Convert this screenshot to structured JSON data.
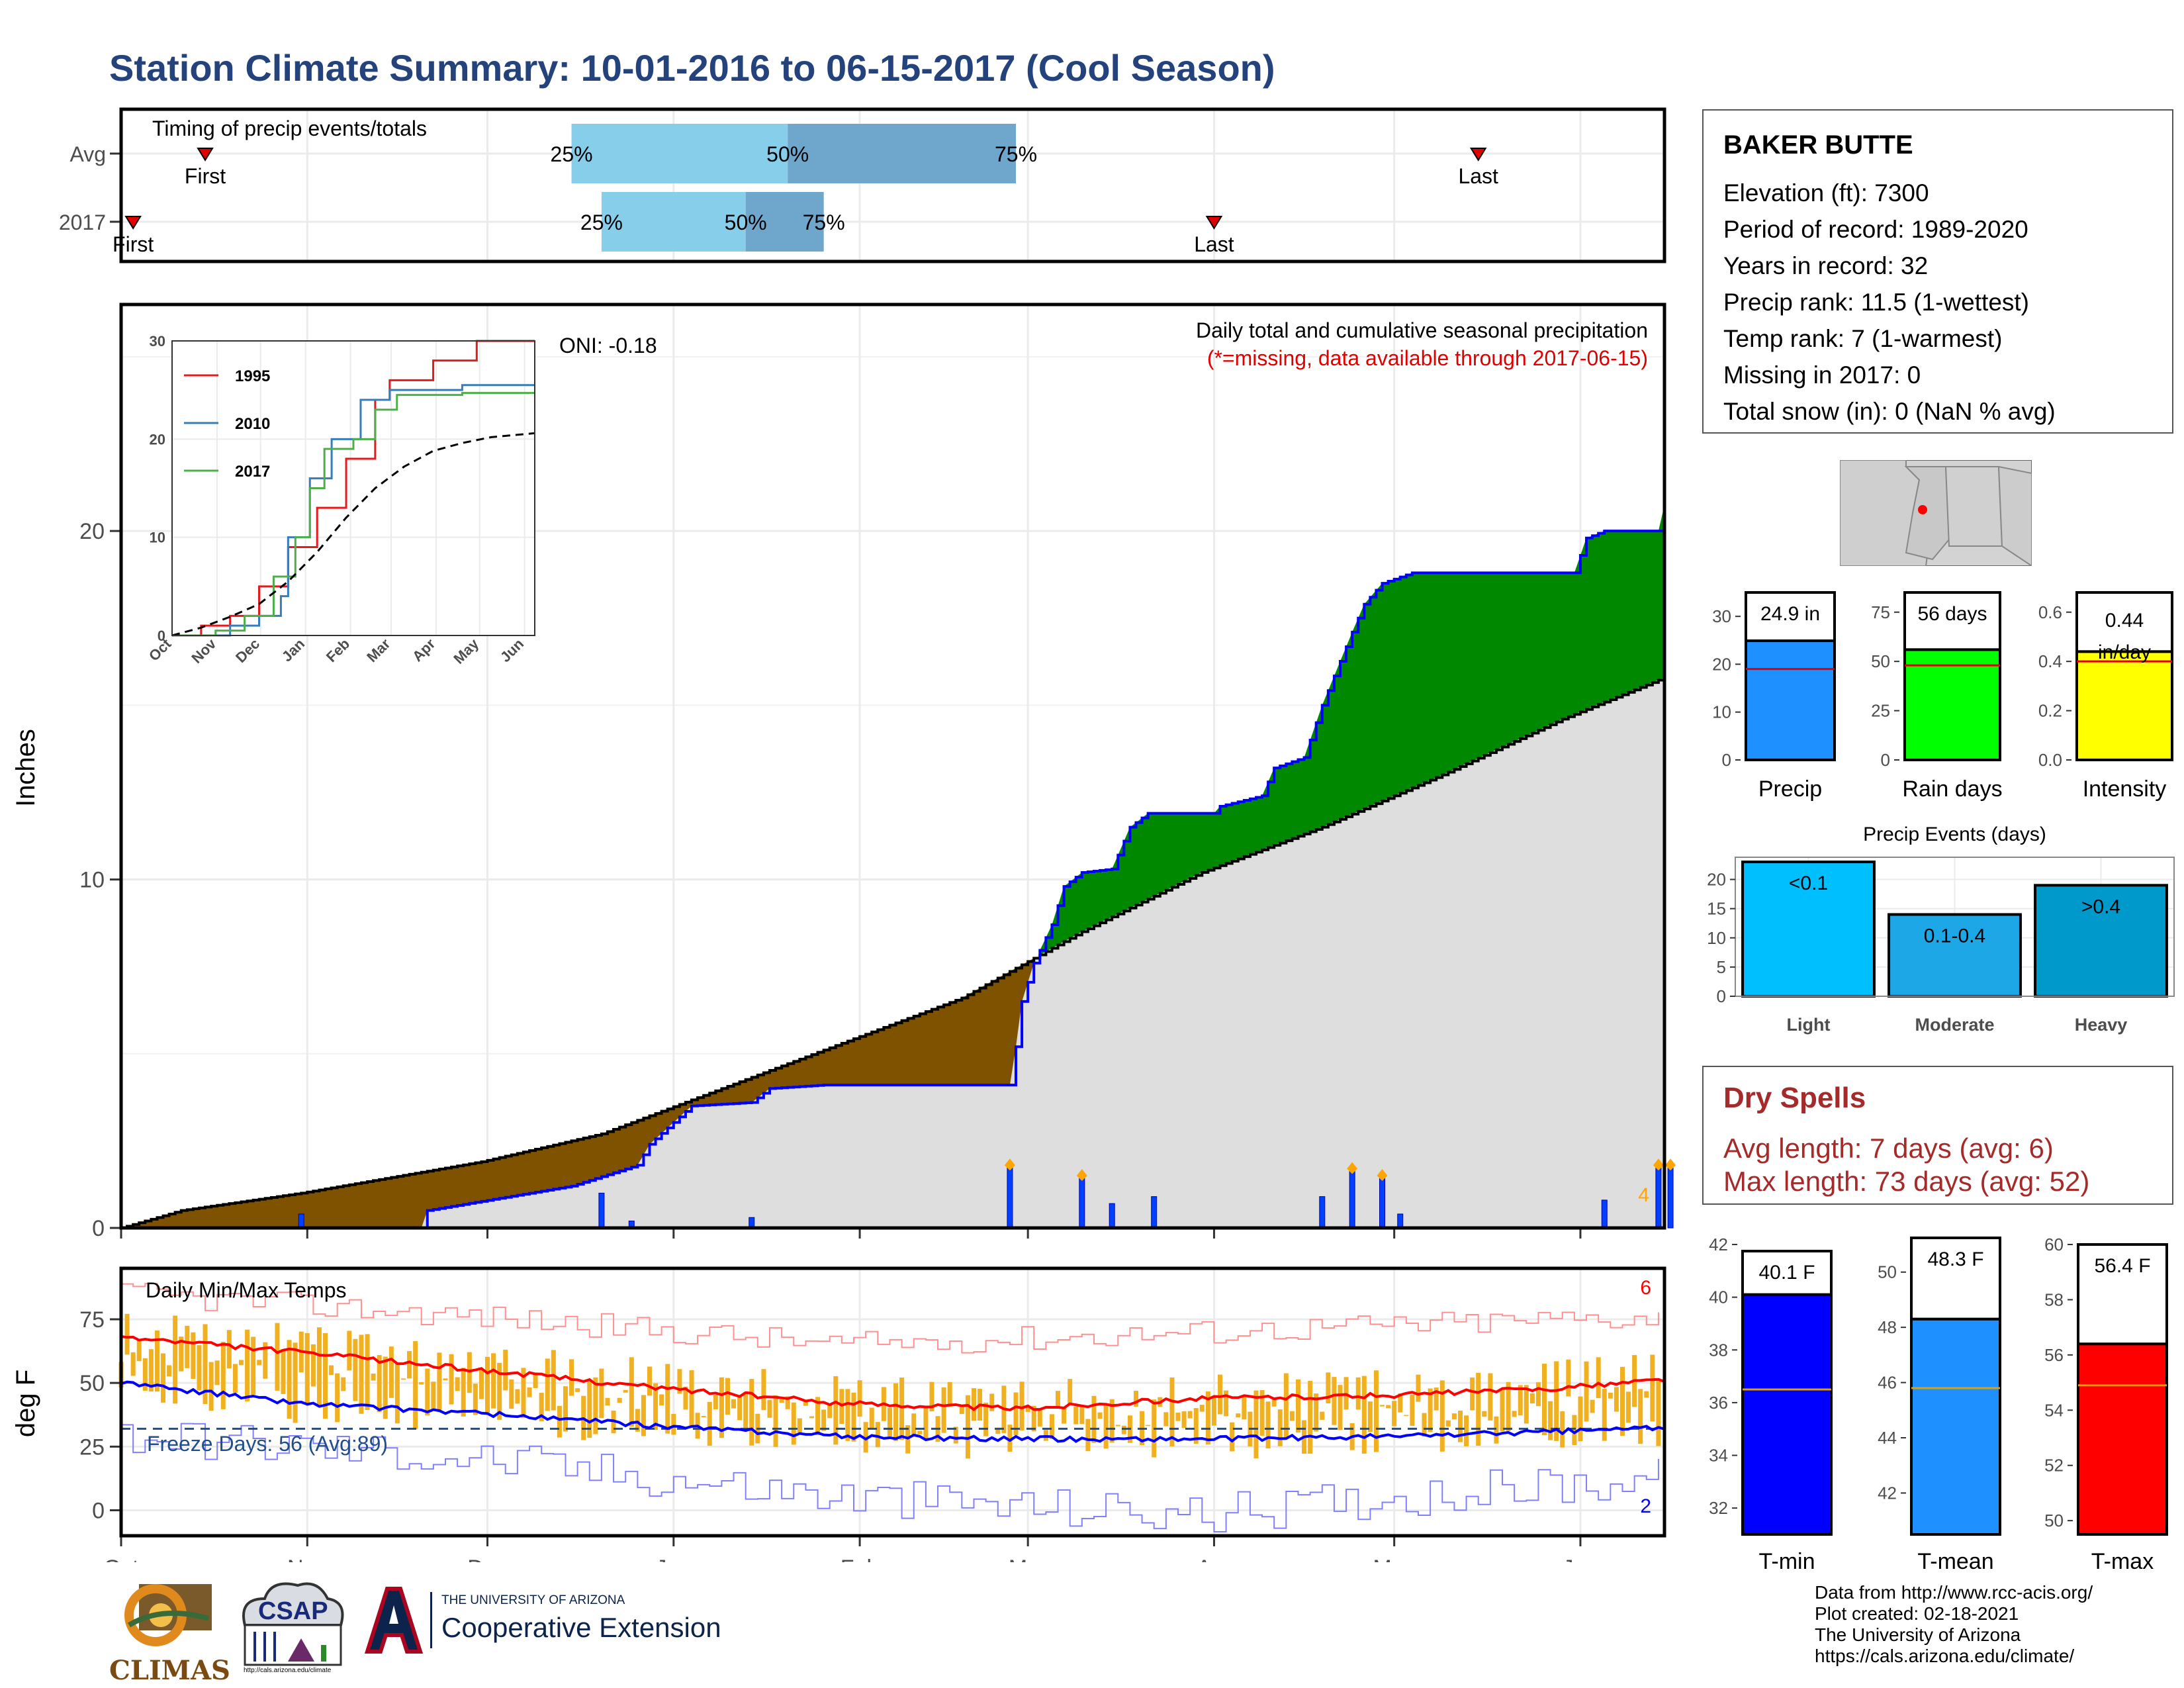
{
  "title": "Station Climate Summary: 10-01-2016 to 06-15-2017 (Cool Season)",
  "timing": {
    "label": "Timing of precip events/totals",
    "rows": [
      "Avg",
      "2017"
    ],
    "first_label": "First",
    "last_label": "Last",
    "pct_labels": [
      "25%",
      "50%",
      "75%"
    ]
  },
  "precip_panel": {
    "title": "Daily total and cumulative seasonal precipitation",
    "subtitle": "(*=missing, data available through 2017-06-15)",
    "ylabel": "Inches",
    "oni": "ONI: -0.18",
    "corner_count": "4"
  },
  "inset": {
    "legend": [
      "1995",
      "2010",
      "2017"
    ],
    "colors": [
      "#e41a1c",
      "#377eb8",
      "#4daf4a"
    ],
    "yticks": [
      "0",
      "10",
      "20",
      "30"
    ],
    "xticks": [
      "Oct",
      "Nov",
      "Dec",
      "Jan",
      "Feb",
      "Mar",
      "Apr",
      "May",
      "Jun"
    ]
  },
  "temp_panel": {
    "title": "Daily Min/Max Temps",
    "ylabel": "deg F",
    "freeze": "Freeze Days: 56 (Avg:89)",
    "count_top": "6",
    "count_bottom": "2"
  },
  "months": [
    "Oct",
    "Nov",
    "Dec",
    "Jan",
    "Feb",
    "Mar",
    "Apr",
    "May",
    "Jun"
  ],
  "station": {
    "name": "BAKER BUTTE",
    "lines": [
      "Elevation (ft): 7300",
      "Period of record: 1989-2020",
      "Years in record: 32",
      "Precip rank: 11.5 (1-wettest)",
      "Temp rank: 7 (1-warmest)",
      "Missing in 2017: 0",
      "Total snow (in): 0 (NaN % avg)"
    ]
  },
  "summary_bars": [
    {
      "label": "Precip",
      "value_text": "24.9 in",
      "value": 24.9,
      "avg": 19,
      "ymax": 35,
      "ticks": [
        "0",
        "10",
        "20",
        "30"
      ],
      "color": "#1e90ff"
    },
    {
      "label": "Rain days",
      "value_text": "56 days",
      "value": 56,
      "avg": 48,
      "ymax": 85,
      "ticks": [
        "0",
        "25",
        "50",
        "75"
      ],
      "color": "#00ff00"
    },
    {
      "label": "Intensity",
      "value_text": "0.44 in/day",
      "value": 0.44,
      "avg": 0.4,
      "ymax": 0.68,
      "ticks": [
        "0.0",
        "0.2",
        "0.4",
        "0.6"
      ],
      "color": "#ffff00"
    }
  ],
  "events": {
    "title": "Precip Events (days)",
    "categories": [
      "Light",
      "Moderate",
      "Heavy"
    ],
    "labels": [
      "<0.1",
      "0.1-0.4",
      ">0.4"
    ],
    "values": [
      23,
      14,
      19
    ],
    "ticks": [
      "0",
      "5",
      "10",
      "15",
      "20"
    ],
    "colors": [
      "#00bfff",
      "#1ea7e6",
      "#0099cc"
    ]
  },
  "dry_spells": {
    "title": "Dry Spells",
    "avg": "Avg length: 7 days (avg: 6)",
    "max": "Max length: 73 days (avg: 52)"
  },
  "temp_bars": [
    {
      "label": "T-min",
      "value_text": "40.1 F",
      "value": 40.1,
      "avg": 36.5,
      "ymin": 31,
      "ymax": 42,
      "ticks": [
        "32",
        "34",
        "36",
        "38",
        "40",
        "42"
      ],
      "color": "#0000ff"
    },
    {
      "label": "T-mean",
      "value_text": "48.3 F",
      "value": 48.3,
      "avg": 45.8,
      "ymin": 40.5,
      "ymax": 51,
      "ticks": [
        "42",
        "44",
        "46",
        "48",
        "50"
      ],
      "color": "#1e90ff"
    },
    {
      "label": "T-max",
      "value_text": "56.4 F",
      "value": 56.4,
      "avg": 54.9,
      "ymin": 49.5,
      "ymax": 60,
      "ticks": [
        "50",
        "52",
        "54",
        "56",
        "58",
        "60"
      ],
      "color": "#ff0000"
    }
  ],
  "credits": [
    "Data from http://www.rcc-acis.org/",
    "Plot created: 02-18-2021",
    "The University of Arizona",
    "https://cals.arizona.edu/climate/"
  ],
  "logos": {
    "climas": "CLIMAS",
    "csap": "CSAP",
    "csap_url": "http://cals.arizona.edu/climate",
    "ua_small": "THE UNIVERSITY OF ARIZONA",
    "ua_big": "Cooperative Extension"
  },
  "chart_data": [
    {
      "type": "bar",
      "name": "timing",
      "rows": [
        {
          "label": "Avg",
          "first": "2016-10-15",
          "q25": "2016-12-15",
          "q50": "2017-01-20",
          "q75": "2017-02-27",
          "last": "2017-05-15"
        },
        {
          "label": "2017",
          "first": "2016-10-03",
          "q25": "2016-12-20",
          "q50": "2017-01-13",
          "q75": "2017-01-26",
          "last": "2017-04-01"
        }
      ]
    },
    {
      "type": "area",
      "name": "cumulative_precip",
      "ylim": [
        0,
        26.5
      ],
      "yticks": [
        0,
        10,
        20
      ],
      "cum_2017": [
        [
          0,
          0
        ],
        [
          50,
          0
        ],
        [
          51,
          0.5
        ],
        [
          75,
          1.2
        ],
        [
          86,
          1.8
        ],
        [
          88,
          2.4
        ],
        [
          95,
          3.5
        ],
        [
          105,
          3.6
        ],
        [
          108,
          4.0
        ],
        [
          117,
          4.1
        ],
        [
          148,
          4.1
        ],
        [
          149,
          5.2
        ],
        [
          150,
          6.5
        ],
        [
          152,
          7.6
        ],
        [
          155,
          8.7
        ],
        [
          157,
          9.8
        ],
        [
          160,
          10.2
        ],
        [
          165,
          10.3
        ],
        [
          168,
          11.5
        ],
        [
          171,
          11.9
        ],
        [
          182,
          11.9
        ],
        [
          183,
          12.1
        ],
        [
          190,
          12.4
        ],
        [
          192,
          13.2
        ],
        [
          197,
          13.5
        ],
        [
          200,
          15.0
        ],
        [
          205,
          17.1
        ],
        [
          207,
          17.9
        ],
        [
          210,
          18.5
        ],
        [
          215,
          18.8
        ],
        [
          242,
          18.8
        ],
        [
          244,
          19.8
        ],
        [
          247,
          20.0
        ],
        [
          256,
          20.0
        ],
        [
          258,
          21.5
        ],
        [
          263,
          23.8
        ],
        [
          270,
          24.7
        ],
        [
          285,
          24.7
        ],
        [
          300,
          25.0
        ],
        [
          330,
          25.0
        ],
        [
          365,
          25.0
        ]
      ],
      "cum_avg": [
        [
          0,
          0
        ],
        [
          10,
          0.5
        ],
        [
          30,
          1.0
        ],
        [
          60,
          1.9
        ],
        [
          80,
          2.7
        ],
        [
          100,
          4.0
        ],
        [
          120,
          5.3
        ],
        [
          140,
          6.6
        ],
        [
          160,
          8.5
        ],
        [
          180,
          10.2
        ],
        [
          200,
          11.5
        ],
        [
          220,
          13.0
        ],
        [
          240,
          14.6
        ],
        [
          260,
          16.0
        ],
        [
          280,
          17.2
        ],
        [
          300,
          18.2
        ],
        [
          320,
          19.3
        ],
        [
          340,
          19.8
        ],
        [
          365,
          20.4
        ]
      ],
      "daily_bars": [
        [
          30,
          0.4
        ],
        [
          80,
          1.0
        ],
        [
          85,
          0.2
        ],
        [
          105,
          0.3
        ],
        [
          148,
          1.8
        ],
        [
          160,
          1.5
        ],
        [
          165,
          0.7
        ],
        [
          172,
          0.9
        ],
        [
          200,
          0.9
        ],
        [
          205,
          1.7
        ],
        [
          210,
          1.5
        ],
        [
          213,
          0.4
        ],
        [
          247,
          0.8
        ],
        [
          256,
          1.8
        ],
        [
          258,
          1.8
        ],
        [
          290,
          0.4
        ],
        [
          320,
          0.1
        ]
      ]
    },
    {
      "type": "line",
      "name": "inset_cumulative",
      "ylim": [
        0,
        30
      ],
      "x_months": [
        "Oct",
        "Nov",
        "Dec",
        "Jan",
        "Feb",
        "Mar",
        "Apr",
        "May",
        "Jun"
      ],
      "series": [
        {
          "name": "1995",
          "points": [
            [
              0,
              0
            ],
            [
              20,
              1
            ],
            [
              40,
              2
            ],
            [
              60,
              5
            ],
            [
              80,
              9
            ],
            [
              100,
              13
            ],
            [
              120,
              18
            ],
            [
              140,
              24
            ],
            [
              150,
              26
            ],
            [
              180,
              28
            ],
            [
              210,
              30
            ],
            [
              250,
              30
            ]
          ]
        },
        {
          "name": "2010",
          "points": [
            [
              0,
              0
            ],
            [
              20,
              0
            ],
            [
              40,
              1
            ],
            [
              60,
              2
            ],
            [
              75,
              4
            ],
            [
              80,
              10
            ],
            [
              95,
              16
            ],
            [
              110,
              20
            ],
            [
              130,
              24
            ],
            [
              150,
              25
            ],
            [
              200,
              25.5
            ],
            [
              250,
              25.5
            ]
          ]
        },
        {
          "name": "2017",
          "points": [
            [
              0,
              0
            ],
            [
              30,
              0.5
            ],
            [
              50,
              2
            ],
            [
              70,
              6
            ],
            [
              85,
              10
            ],
            [
              95,
              15
            ],
            [
              105,
              19
            ],
            [
              125,
              20
            ],
            [
              140,
              23
            ],
            [
              155,
              24.5
            ],
            [
              200,
              24.7
            ],
            [
              250,
              24.7
            ]
          ]
        },
        {
          "points": [
            [
              0,
              0
            ],
            [
              20,
              0.8
            ],
            [
              40,
              1.9
            ],
            [
              60,
              3.2
            ],
            [
              80,
              5.5
            ],
            [
              100,
              8.5
            ],
            [
              120,
              12.0
            ],
            [
              140,
              15.0
            ],
            [
              160,
              17.2
            ],
            [
              180,
              18.8
            ],
            [
              200,
              19.6
            ],
            [
              220,
              20.2
            ],
            [
              250,
              20.6
            ]
          ]
        }
      ]
    },
    {
      "type": "line",
      "name": "daily_temps",
      "ylim": [
        -10,
        95
      ],
      "yticks": [
        0,
        25,
        50,
        75
      ],
      "freeze_line": 32,
      "tmax_smooth": [
        [
          0,
          68
        ],
        [
          30,
          62
        ],
        [
          60,
          55
        ],
        [
          90,
          48
        ],
        [
          120,
          42
        ],
        [
          150,
          40
        ],
        [
          180,
          44
        ],
        [
          210,
          45
        ],
        [
          240,
          48
        ],
        [
          260,
          52
        ],
        [
          280,
          54
        ],
        [
          300,
          57
        ],
        [
          320,
          63
        ],
        [
          340,
          70
        ],
        [
          365,
          76
        ]
      ],
      "tmin_smooth": [
        [
          0,
          50
        ],
        [
          30,
          42
        ],
        [
          60,
          38
        ],
        [
          90,
          33
        ],
        [
          120,
          29
        ],
        [
          150,
          28
        ],
        [
          180,
          28
        ],
        [
          210,
          29
        ],
        [
          240,
          31
        ],
        [
          260,
          33
        ],
        [
          280,
          34
        ],
        [
          300,
          38
        ],
        [
          320,
          42
        ],
        [
          340,
          48
        ],
        [
          365,
          54
        ]
      ],
      "record_high": [
        [
          0,
          85
        ],
        [
          60,
          76
        ],
        [
          120,
          65
        ],
        [
          180,
          70
        ],
        [
          240,
          75
        ],
        [
          300,
          80
        ],
        [
          365,
          90
        ]
      ],
      "record_low": [
        [
          0,
          30
        ],
        [
          60,
          20
        ],
        [
          120,
          5
        ],
        [
          180,
          -2
        ],
        [
          210,
          5
        ],
        [
          240,
          10
        ],
        [
          300,
          20
        ],
        [
          365,
          38
        ]
      ]
    }
  ]
}
